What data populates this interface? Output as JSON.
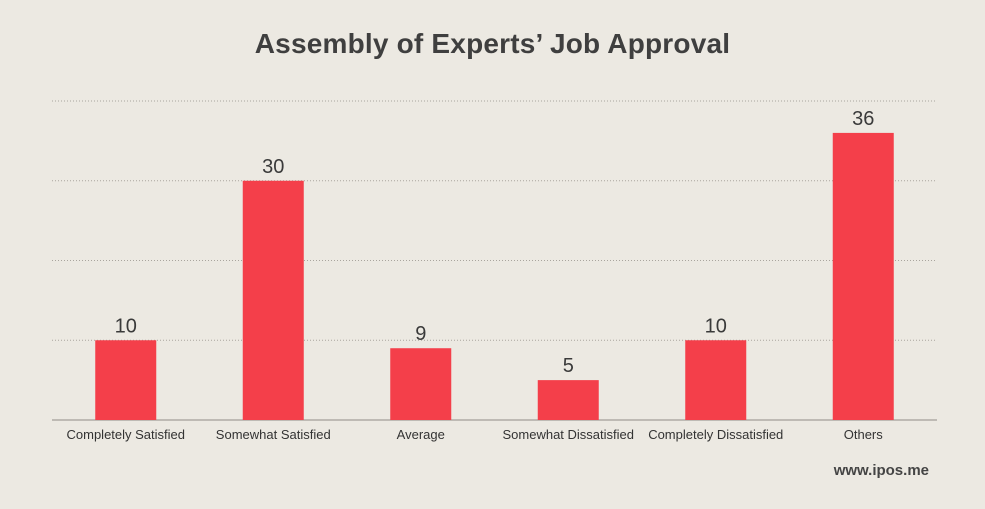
{
  "chart_data": {
    "type": "bar",
    "title": "Assembly of Experts’ Job Approval",
    "categories": [
      "Completely Satisfied",
      "Somewhat Satisfied",
      "Average",
      "Somewhat Dissatisfied",
      "Completely Dissatisfied",
      "Others"
    ],
    "values": [
      10,
      30,
      9,
      5,
      10,
      36
    ],
    "data_labels": [
      "10",
      "30",
      "9",
      "5",
      "10",
      "36"
    ],
    "xlabel": "",
    "ylabel": "",
    "ylim": [
      0,
      40
    ],
    "gridlines": [
      10,
      20,
      30,
      40
    ],
    "grid": true,
    "bar_color": "#f43f4a"
  },
  "source": "www.ipos.me"
}
